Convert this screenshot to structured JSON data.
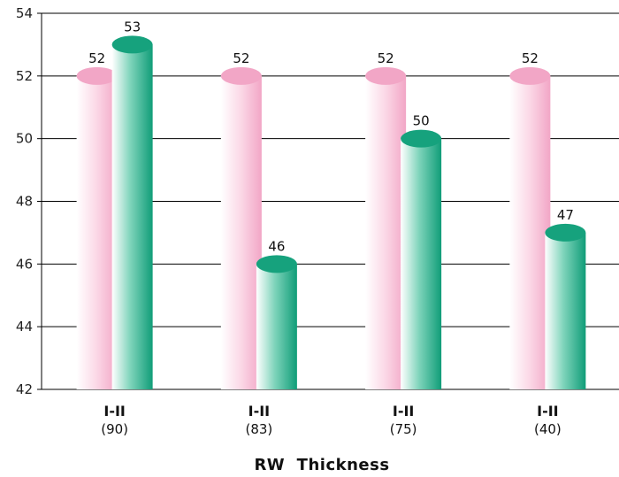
{
  "chart_data": {
    "type": "bar",
    "categories": [
      {
        "top": "I-II",
        "bottom": "(90)"
      },
      {
        "top": "I-II",
        "bottom": "(83)"
      },
      {
        "top": "I-II",
        "bottom": "(75)"
      },
      {
        "top": "I-II",
        "bottom": "(40)"
      }
    ],
    "series": [
      {
        "values": [
          52,
          52,
          52,
          52
        ],
        "color": "#f2aac9"
      },
      {
        "values": [
          53,
          46,
          50,
          47
        ],
        "color": "#1aa882"
      }
    ],
    "ylim": [
      42,
      54
    ],
    "yticks": [
      42,
      44,
      46,
      48,
      50,
      52,
      54
    ],
    "xlabel": "RW  Thickness",
    "ylabel": "",
    "title": "",
    "grid": true,
    "legend": "none",
    "bar_style": "3d-cylinder"
  }
}
